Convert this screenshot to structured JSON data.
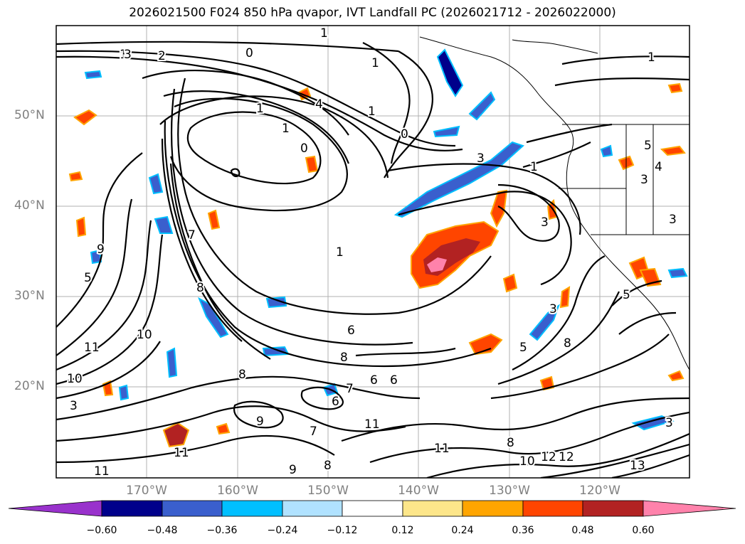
{
  "title": "2026021500 F024 850 hPa qvapor, IVT Landfall PC (2026021712 - 2026022000)",
  "lat_labels": [
    "50°N",
    "40°N",
    "30°N",
    "20°N"
  ],
  "lon_labels": [
    "170°W",
    "160°W",
    "150°W",
    "140°W",
    "130°W",
    "120°W"
  ],
  "colorbar": {
    "tick_labels": [
      "−0.60",
      "−0.48",
      "−0.36",
      "−0.24",
      "−0.12",
      "0.12",
      "0.24",
      "0.36",
      "0.48",
      "0.60"
    ],
    "colors": [
      "#9932cc",
      "#00008b",
      "#3a5fcd",
      "#00bfff",
      "#b0e2ff",
      "#ffffff",
      "#fde68a",
      "#ffa500",
      "#ff4500",
      "#b22222",
      "#ff82ab"
    ]
  },
  "contour_labels": [
    "1",
    "3",
    "2",
    "0",
    "1",
    "1",
    "4",
    "1",
    "1",
    "0",
    "0",
    "1",
    "3",
    "1",
    "5",
    "3",
    "4",
    "3",
    "3",
    "7",
    "8",
    "1",
    "9",
    "5",
    "10",
    "6",
    "8",
    "6",
    "6",
    "7",
    "7",
    "6",
    "8",
    "9",
    "11",
    "11",
    "11",
    "8",
    "10",
    "11",
    "12",
    "12",
    "13",
    "9",
    "8",
    "5",
    "3",
    "3",
    "8",
    "5",
    "3",
    "10",
    "11",
    "1"
  ]
}
